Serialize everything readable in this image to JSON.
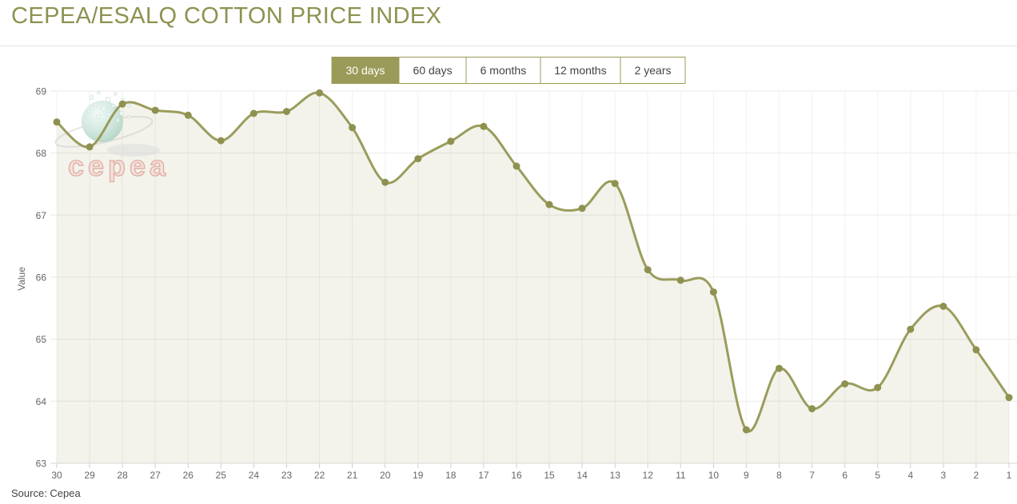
{
  "header": {
    "title": "CEPEA/ESALQ COTTON PRICE INDEX"
  },
  "tabs": [
    {
      "label": "30 days",
      "active": true
    },
    {
      "label": "60 days",
      "active": false
    },
    {
      "label": "6 months",
      "active": false
    },
    {
      "label": "12 months",
      "active": false
    },
    {
      "label": "2 years",
      "active": false
    }
  ],
  "watermark": {
    "logo_text": "cepea"
  },
  "footer": {
    "source": "Source: Cepea"
  },
  "colors": {
    "accent_line": "#9a9c5c",
    "marker": "#8f9150",
    "area_fill": "rgba(153,155,87,0.12)",
    "grid_h": "#eaeaea",
    "grid_v": "#f1f1ef",
    "axis_line": "#d5d5d5",
    "tick_mark": "#cfcfcf",
    "tick_text": "#666666",
    "title_text": "#8f9150",
    "tab_active_bg": "#9b9b59",
    "watermark_text_fill": "#f6ddd8",
    "watermark_text_stroke": "#dca79e"
  },
  "chart_data": {
    "type": "area",
    "title": "CEPEA/ESALQ COTTON PRICE INDEX",
    "xlabel": "",
    "ylabel": "Value",
    "ylim": [
      63,
      69
    ],
    "y_ticks": [
      63,
      64,
      65,
      66,
      67,
      68,
      69
    ],
    "grid": true,
    "legend": false,
    "categories": [
      "30",
      "29",
      "28",
      "27",
      "26",
      "25",
      "24",
      "23",
      "22",
      "21",
      "20",
      "19",
      "18",
      "17",
      "16",
      "15",
      "14",
      "13",
      "12",
      "11",
      "10",
      "9",
      "8",
      "7",
      "6",
      "5",
      "4",
      "3",
      "2",
      "1"
    ],
    "series": [
      {
        "name": "Value",
        "values": [
          68.5,
          68.1,
          68.79,
          68.69,
          68.61,
          68.2,
          68.64,
          68.67,
          68.97,
          68.41,
          67.53,
          67.91,
          68.19,
          68.43,
          67.79,
          67.17,
          67.11,
          67.51,
          66.12,
          65.95,
          65.76,
          63.54,
          64.53,
          63.88,
          64.28,
          64.22,
          65.16,
          65.53,
          64.83,
          64.06
        ]
      }
    ]
  }
}
